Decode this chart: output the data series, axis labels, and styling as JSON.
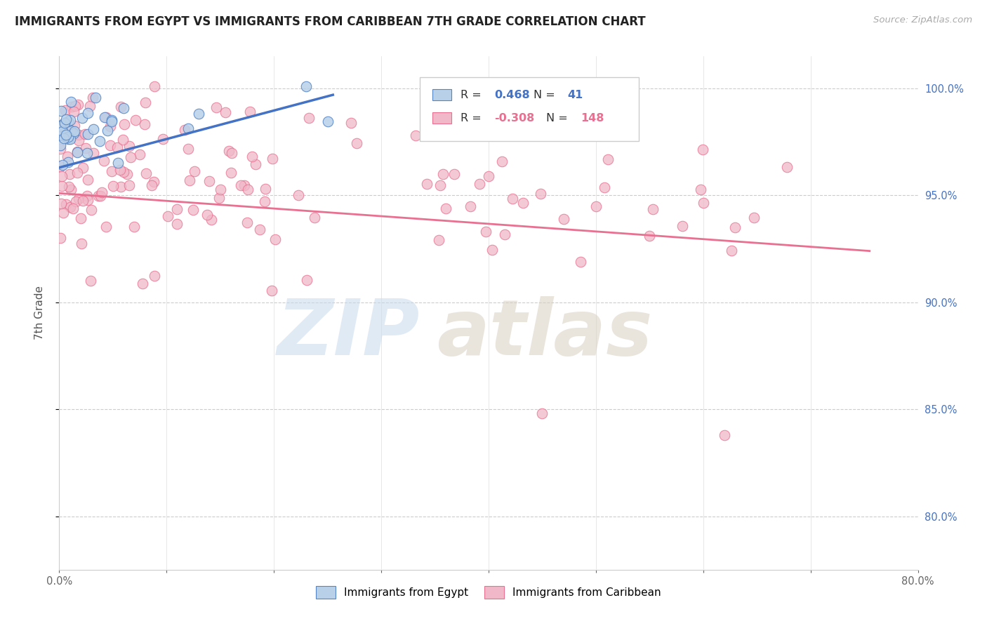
{
  "title": "IMMIGRANTS FROM EGYPT VS IMMIGRANTS FROM CARIBBEAN 7TH GRADE CORRELATION CHART",
  "source": "Source: ZipAtlas.com",
  "ylabel": "7th Grade",
  "x_ticks": [
    0.0,
    0.1,
    0.2,
    0.3,
    0.4,
    0.5,
    0.6,
    0.7,
    0.8
  ],
  "x_tick_labels": [
    "0.0%",
    "",
    "",
    "",
    "",
    "",
    "",
    "",
    "80.0%"
  ],
  "y_ticks": [
    0.8,
    0.85,
    0.9,
    0.95,
    1.0
  ],
  "y_tick_labels": [
    "80.0%",
    "85.0%",
    "90.0%",
    "95.0%",
    "100.0%"
  ],
  "xlim": [
    0.0,
    0.8
  ],
  "ylim": [
    0.775,
    1.015
  ],
  "R_egypt": 0.468,
  "N_egypt": 41,
  "R_caribbean": -0.308,
  "N_caribbean": 148,
  "color_egypt_fill": "#b8d0e8",
  "color_egypt_edge": "#5585c5",
  "color_egypt_line": "#4472c4",
  "color_carib_fill": "#f0b8c8",
  "color_carib_edge": "#e87090",
  "color_carib_line": "#e87090",
  "color_right_axis": "#4472c4",
  "egypt_line_x0": 0.0,
  "egypt_line_x1": 0.255,
  "egypt_line_y0": 0.963,
  "egypt_line_y1": 0.997,
  "carib_line_x0": 0.0,
  "carib_line_x1": 0.755,
  "carib_line_y0": 0.951,
  "carib_line_y1": 0.924,
  "legend_R_egypt": "0.468",
  "legend_N_egypt": "41",
  "legend_R_carib": "-0.308",
  "legend_N_carib": "148"
}
